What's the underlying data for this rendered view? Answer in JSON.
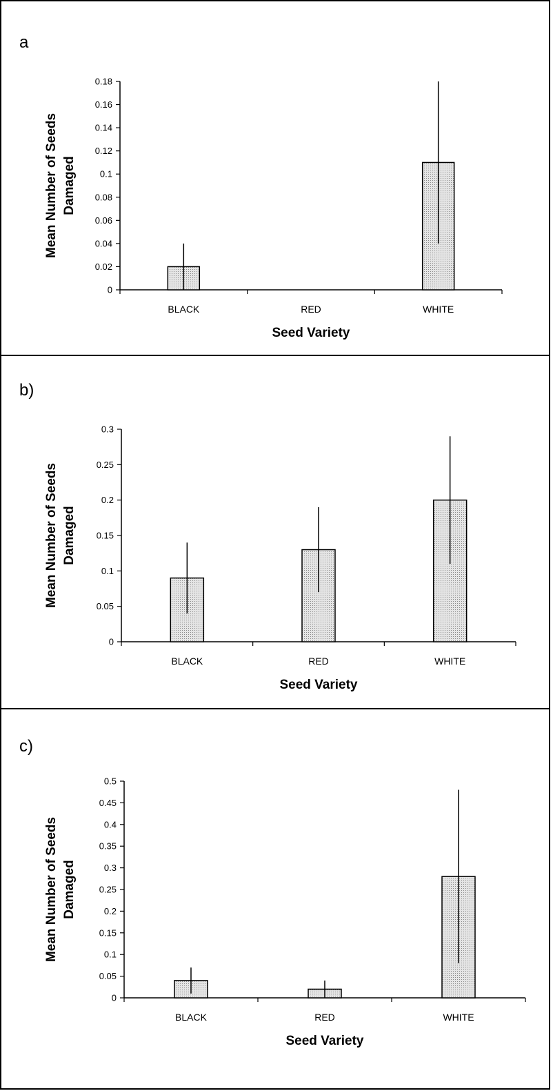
{
  "chart_data": [
    {
      "panel_label": "a",
      "type": "bar",
      "categories": [
        "BLACK",
        "RED",
        "WHITE"
      ],
      "values": [
        0.02,
        0,
        0.11
      ],
      "error_bars": [
        [
          0,
          0.04
        ],
        [
          0,
          0
        ],
        [
          0.04,
          0.18
        ]
      ],
      "ylim": [
        0,
        0.18
      ],
      "yticks": [
        "0",
        "0.02",
        "0.04",
        "0.06",
        "0.08",
        "0.1",
        "0.12",
        "0.14",
        "0.16",
        "0.18"
      ],
      "xlabel": "Seed Variety",
      "ylabel": [
        "Mean Number of Seeds",
        "Damaged"
      ],
      "grid": false
    },
    {
      "panel_label": "b)",
      "type": "bar",
      "categories": [
        "BLACK",
        "RED",
        "WHITE"
      ],
      "values": [
        0.09,
        0.13,
        0.2
      ],
      "error_bars": [
        [
          0.04,
          0.14
        ],
        [
          0.07,
          0.19
        ],
        [
          0.11,
          0.29
        ]
      ],
      "ylim": [
        0,
        0.3
      ],
      "yticks": [
        "0",
        "0.05",
        "0.1",
        "0.15",
        "0.2",
        "0.25",
        "0.3"
      ],
      "xlabel": "Seed Variety",
      "ylabel": [
        "Mean Number of Seeds",
        "Damaged"
      ],
      "grid": false
    },
    {
      "panel_label": "c)",
      "type": "bar",
      "categories": [
        "BLACK",
        "RED",
        "WHITE"
      ],
      "values": [
        0.04,
        0.02,
        0.28
      ],
      "error_bars": [
        [
          0.01,
          0.07
        ],
        [
          0.0,
          0.04
        ],
        [
          0.08,
          0.48
        ]
      ],
      "ylim": [
        0,
        0.5
      ],
      "yticks": [
        "0",
        "0.05",
        "0.1",
        "0.15",
        "0.2",
        "0.25",
        "0.3",
        "0.35",
        "0.4",
        "0.45",
        "0.5"
      ],
      "xlabel": "Seed Variety",
      "ylabel": [
        "Mean Number of Seeds",
        "Damaged"
      ],
      "grid": false
    }
  ]
}
